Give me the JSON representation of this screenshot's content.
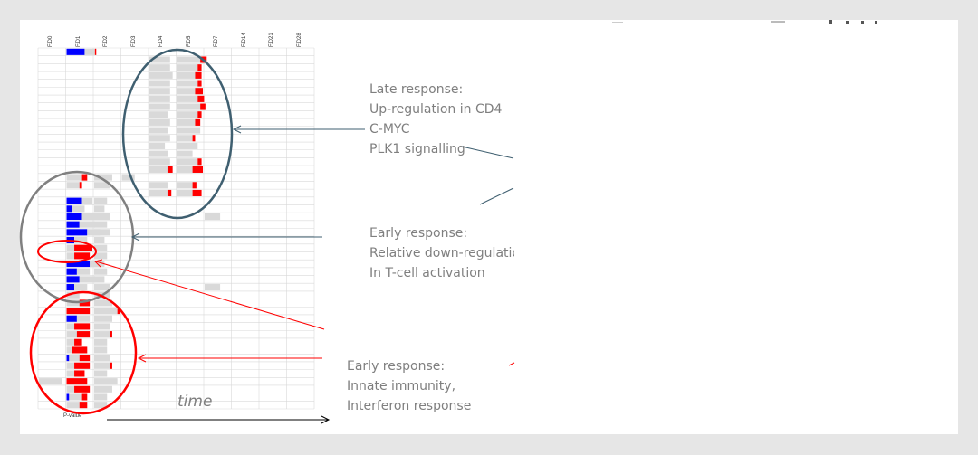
{
  "columns": [
    "F.D0",
    "F.D1",
    "F.D2",
    "F.D3",
    "F.D4",
    "F.D5",
    "F.D7",
    "F.D14",
    "F.D21",
    "F.D28"
  ],
  "annotations": {
    "late": [
      "Late response:",
      "Up-regulation in CD4",
      "C-MYC",
      "PLK1 signalling"
    ],
    "early_down": [
      "Early response:",
      "Relative down-regulation",
      "In T-cell activation"
    ],
    "early_innate": [
      "Early response:",
      "Innate immunity,",
      "Interferon response"
    ]
  },
  "axis": {
    "time_label": "time",
    "pvalue_label": "P-value"
  },
  "colors": {
    "background": "#e6e6e6",
    "up": "#ff0000",
    "down": "#0000ff",
    "neutral_bar": "#d9d9d9",
    "late_ellipse": "#3f5f70",
    "grey_ellipse": "#808080",
    "red_ellipse": "#ff0000"
  },
  "heatmap": {
    "rows": [
      {
        "c": [
          [
            1,
            "b",
            0.7
          ],
          [
            1,
            "n",
            0.4
          ],
          [
            1,
            "r",
            0.05
          ]
        ]
      },
      {
        "c": [
          [
            4,
            "n",
            0.8
          ],
          [
            5,
            "n",
            0.9
          ],
          [
            5,
            "r",
            0.25
          ]
        ]
      },
      {
        "c": [
          [
            4,
            "n",
            0.8
          ],
          [
            5,
            "n",
            0.8
          ],
          [
            5,
            "r",
            0.15
          ]
        ]
      },
      {
        "c": [
          [
            4,
            "n",
            0.9
          ],
          [
            5,
            "n",
            0.7
          ],
          [
            5,
            "r",
            0.25
          ]
        ]
      },
      {
        "c": [
          [
            4,
            "n",
            0.8
          ],
          [
            5,
            "n",
            0.8
          ],
          [
            5,
            "r",
            0.15
          ]
        ]
      },
      {
        "c": [
          [
            4,
            "n",
            0.8
          ],
          [
            5,
            "n",
            0.7
          ],
          [
            5,
            "r",
            0.3
          ]
        ]
      },
      {
        "c": [
          [
            4,
            "n",
            0.8
          ],
          [
            5,
            "n",
            0.8
          ],
          [
            5,
            "r",
            0.25
          ]
        ]
      },
      {
        "c": [
          [
            4,
            "n",
            0.8
          ],
          [
            5,
            "n",
            0.9
          ],
          [
            5,
            "r",
            0.2
          ]
        ]
      },
      {
        "c": [
          [
            4,
            "n",
            0.7
          ],
          [
            5,
            "n",
            0.8
          ],
          [
            5,
            "r",
            0.15
          ]
        ]
      },
      {
        "c": [
          [
            4,
            "n",
            0.8
          ],
          [
            5,
            "n",
            0.7
          ],
          [
            5,
            "r",
            0.2
          ]
        ]
      },
      {
        "c": [
          [
            4,
            "n",
            0.7
          ],
          [
            5,
            "n",
            0.9
          ]
        ]
      },
      {
        "c": [
          [
            4,
            "n",
            0.8
          ],
          [
            5,
            "n",
            0.6
          ],
          [
            5,
            "r",
            0.1
          ]
        ]
      },
      {
        "c": [
          [
            4,
            "n",
            0.6
          ],
          [
            5,
            "n",
            0.8
          ]
        ]
      },
      {
        "c": [
          [
            4,
            "n",
            0.7
          ],
          [
            5,
            "n",
            0.6
          ]
        ]
      },
      {
        "c": [
          [
            4,
            "n",
            0.8
          ],
          [
            5,
            "n",
            0.8
          ],
          [
            5,
            "r",
            0.15
          ]
        ]
      },
      {
        "c": [
          [
            4,
            "n",
            0.7
          ],
          [
            4,
            "r",
            0.2
          ],
          [
            5,
            "n",
            0.6
          ],
          [
            5,
            "r",
            0.4
          ]
        ]
      },
      {
        "c": [
          [
            1,
            "n",
            0.6
          ],
          [
            1,
            "r",
            0.2
          ],
          [
            2,
            "n",
            0.7
          ],
          [
            3,
            "n",
            0.5
          ]
        ]
      },
      {
        "c": [
          [
            1,
            "n",
            0.5
          ],
          [
            1,
            "r",
            0.1
          ],
          [
            2,
            "n",
            0.6
          ],
          [
            4,
            "n",
            0.7
          ],
          [
            5,
            "n",
            0.6
          ],
          [
            5,
            "r",
            0.15
          ]
        ]
      },
      {
        "c": [
          [
            4,
            "n",
            0.7
          ],
          [
            4,
            "r",
            0.15
          ],
          [
            5,
            "n",
            0.6
          ],
          [
            5,
            "r",
            0.35
          ]
        ]
      },
      {
        "c": [
          [
            1,
            "b",
            0.6
          ],
          [
            1,
            "n",
            0.4
          ],
          [
            2,
            "n",
            0.5
          ]
        ]
      },
      {
        "c": [
          [
            1,
            "b",
            0.2
          ],
          [
            1,
            "n",
            0.5
          ],
          [
            2,
            "n",
            0.4
          ]
        ]
      },
      {
        "c": [
          [
            1,
            "b",
            0.6
          ],
          [
            1,
            "n",
            0.5
          ],
          [
            2,
            "n",
            0.6
          ],
          [
            6,
            "n",
            0.6
          ]
        ]
      },
      {
        "c": [
          [
            1,
            "b",
            0.5
          ],
          [
            1,
            "n",
            0.6
          ],
          [
            2,
            "n",
            0.5
          ]
        ]
      },
      {
        "c": [
          [
            1,
            "b",
            0.8
          ],
          [
            1,
            "n",
            0.5
          ],
          [
            2,
            "n",
            0.6
          ]
        ]
      },
      {
        "c": [
          [
            1,
            "b",
            0.3
          ],
          [
            1,
            "n",
            0.5
          ],
          [
            2,
            "n",
            0.4
          ]
        ]
      },
      {
        "c": [
          [
            1,
            "n",
            0.3
          ],
          [
            1,
            "r",
            0.7
          ],
          [
            2,
            "n",
            0.5
          ]
        ]
      },
      {
        "c": [
          [
            1,
            "n",
            0.3
          ],
          [
            1,
            "r",
            0.6
          ],
          [
            2,
            "n",
            0.5
          ]
        ]
      },
      {
        "c": [
          [
            1,
            "b",
            0.9
          ],
          [
            1,
            "n",
            0.5
          ],
          [
            2,
            "n",
            0.4
          ]
        ]
      },
      {
        "c": [
          [
            1,
            "b",
            0.4
          ],
          [
            1,
            "n",
            0.5
          ],
          [
            2,
            "n",
            0.5
          ]
        ]
      },
      {
        "c": [
          [
            1,
            "b",
            0.5
          ],
          [
            1,
            "n",
            0.6
          ],
          [
            2,
            "n",
            0.4
          ]
        ]
      },
      {
        "c": [
          [
            1,
            "b",
            0.3
          ],
          [
            1,
            "n",
            0.5
          ],
          [
            2,
            "n",
            0.6
          ],
          [
            6,
            "n",
            0.6
          ]
        ]
      },
      {
        "c": [
          [
            1,
            "n",
            0.5
          ],
          [
            2,
            "n",
            0.6
          ]
        ]
      },
      {
        "c": [
          [
            1,
            "n",
            0.5
          ],
          [
            1,
            "r",
            0.4
          ],
          [
            2,
            "n",
            0.7
          ]
        ]
      },
      {
        "c": [
          [
            1,
            "r",
            0.9
          ],
          [
            2,
            "n",
            0.9
          ],
          [
            2,
            "r",
            0.1
          ]
        ]
      },
      {
        "c": [
          [
            1,
            "b",
            0.4
          ],
          [
            1,
            "n",
            0.5
          ],
          [
            2,
            "n",
            0.7
          ]
        ]
      },
      {
        "c": [
          [
            1,
            "n",
            0.3
          ],
          [
            1,
            "r",
            0.6
          ],
          [
            2,
            "n",
            0.6
          ]
        ]
      },
      {
        "c": [
          [
            1,
            "n",
            0.4
          ],
          [
            1,
            "r",
            0.5
          ],
          [
            2,
            "n",
            0.6
          ],
          [
            2,
            "r",
            0.1
          ]
        ]
      },
      {
        "c": [
          [
            1,
            "n",
            0.3
          ],
          [
            1,
            "r",
            0.3
          ],
          [
            2,
            "n",
            0.5
          ]
        ]
      },
      {
        "c": [
          [
            1,
            "n",
            0.2
          ],
          [
            1,
            "r",
            0.6
          ],
          [
            2,
            "n",
            0.5
          ]
        ]
      },
      {
        "c": [
          [
            1,
            "b",
            0.1
          ],
          [
            1,
            "n",
            0.4
          ],
          [
            1,
            "r",
            0.4
          ],
          [
            2,
            "n",
            0.6
          ]
        ]
      },
      {
        "c": [
          [
            1,
            "n",
            0.3
          ],
          [
            1,
            "r",
            0.6
          ],
          [
            2,
            "n",
            0.6
          ],
          [
            2,
            "r",
            0.1
          ]
        ]
      },
      {
        "c": [
          [
            1,
            "n",
            0.3
          ],
          [
            1,
            "r",
            0.4
          ],
          [
            2,
            "n",
            0.5
          ]
        ]
      },
      {
        "c": [
          [
            0,
            "n",
            0.9
          ],
          [
            1,
            "r",
            0.8
          ],
          [
            2,
            "n",
            0.9
          ]
        ]
      },
      {
        "c": [
          [
            1,
            "n",
            0.3
          ],
          [
            1,
            "r",
            0.6
          ],
          [
            2,
            "n",
            0.7
          ]
        ]
      },
      {
        "c": [
          [
            1,
            "b",
            0.1
          ],
          [
            1,
            "n",
            0.5
          ],
          [
            1,
            "r",
            0.2
          ],
          [
            2,
            "n",
            0.5
          ]
        ]
      },
      {
        "c": [
          [
            1,
            "n",
            0.5
          ],
          [
            1,
            "r",
            0.3
          ],
          [
            2,
            "n",
            0.5
          ]
        ]
      }
    ]
  }
}
